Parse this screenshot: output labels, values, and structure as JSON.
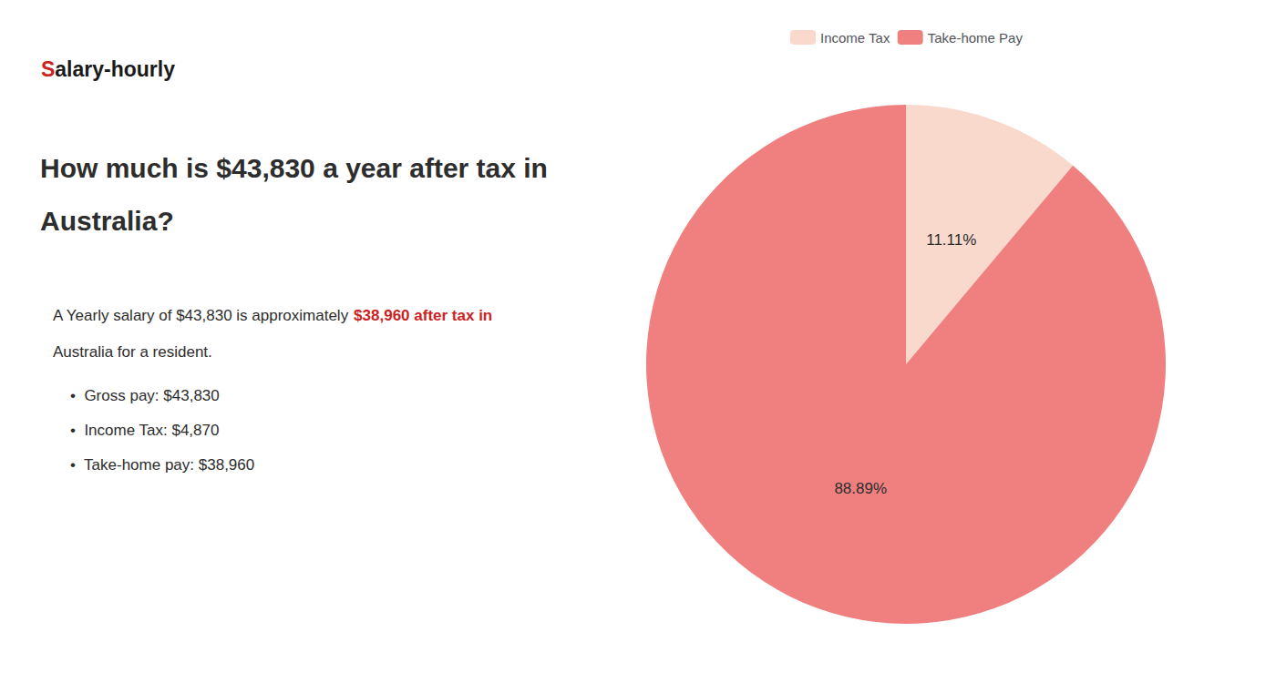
{
  "chart_data": {
    "type": "pie",
    "title": "How much is $43,830 a year after tax in\nAustralia?",
    "categories": [
      "Income Tax",
      "Take-home Pay"
    ],
    "values": [
      11.11,
      88.89
    ],
    "value_labels": [
      "11.11%",
      "88.89%"
    ],
    "colors": [
      "#f9d9cc",
      "#f08080"
    ],
    "data_labels": true,
    "legend": "top",
    "annotations": [
      {
        "text": "S",
        "color": "#cc2222"
      },
      {
        "text": "alary-hourly",
        "color": "#1a1a1a"
      },
      {
        "text": "A Yearly salary of $43,830 is approximately ",
        "color": "#2d2d2d"
      },
      {
        "text": "$38,960 after tax in",
        "color": "#cc2222"
      },
      {
        "text": "Australia for a resident.",
        "color": "#2d2d2d"
      },
      {
        "text": "•  Gross pay: $43,830",
        "color": "#2d2d2d"
      },
      {
        "text": "•  Income Tax: $4,870",
        "color": "#2d2d2d"
      },
      {
        "text": "•  Take-home pay: $38,960",
        "color": "#2d2d2d"
      }
    ]
  }
}
